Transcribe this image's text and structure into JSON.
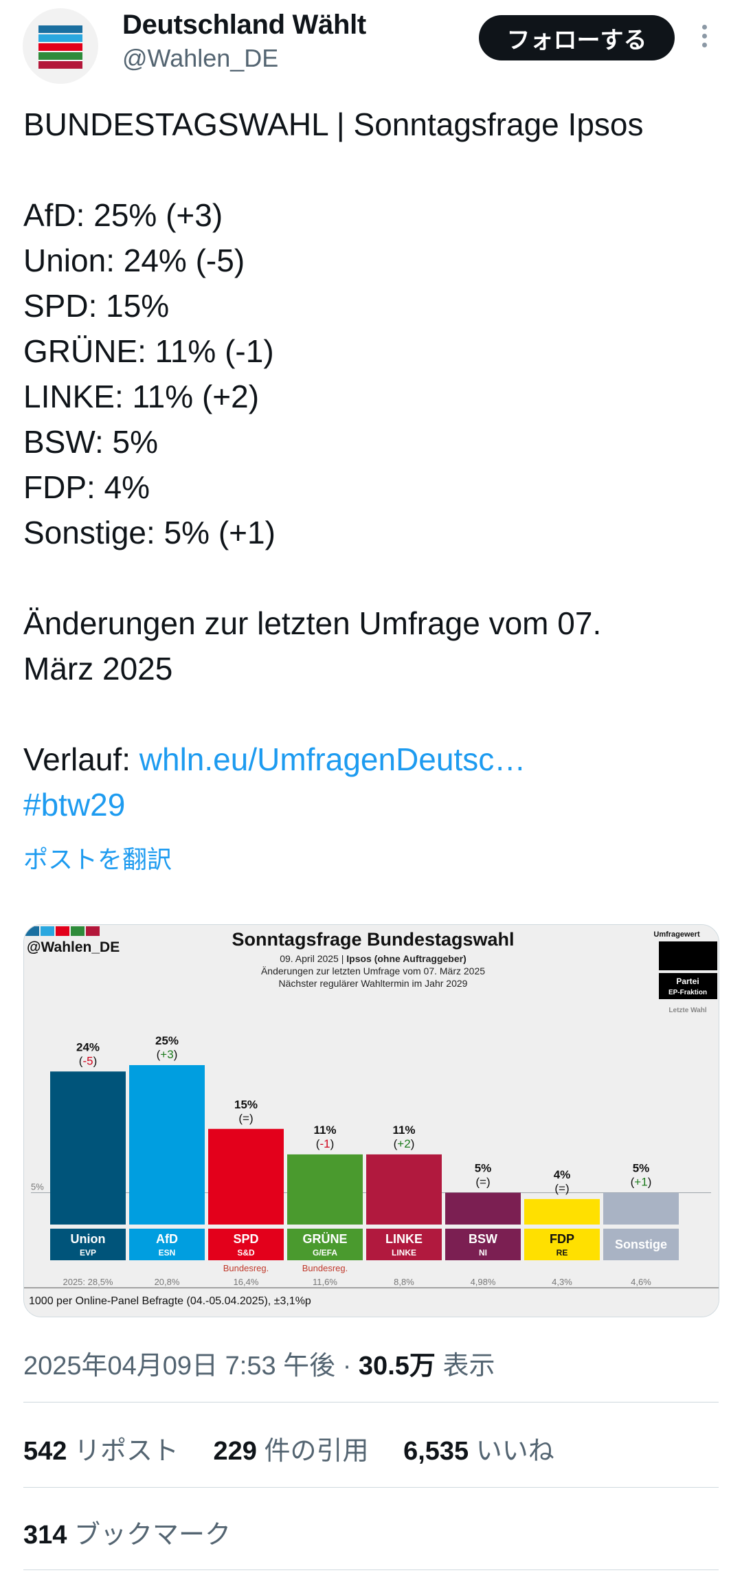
{
  "account": {
    "display_name": "Deutschland Wählt",
    "handle": "@Wahlen_DE",
    "avatar_stripe_colors": [
      "#1a6fa0",
      "#2aa7df",
      "#e2001a",
      "#2e8b3a",
      "#b3173a"
    ]
  },
  "follow_label": "フォローする",
  "tweet": {
    "lines": [
      "BUNDESTAGSWAHL | Sonntagsfrage Ipsos",
      "",
      "AfD: 25% (+3)",
      "Union: 24% (-5)",
      "SPD: 15%",
      "GRÜNE: 11% (-1)",
      "LINKE: 11% (+2)",
      "BSW: 5%",
      "FDP: 4%",
      "Sonstige: 5% (+1)",
      "",
      "Änderungen zur letzten Umfrage vom 07.",
      "März 2025",
      ""
    ],
    "verlauf_label": "Verlauf: ",
    "verlauf_link": "whln.eu/UmfragenDeutsc…",
    "hashtag": "#btw29"
  },
  "translate_label": "ポストを翻訳",
  "chart_data": {
    "type": "bar",
    "brand": "@Wahlen_DE",
    "title": "Sonntagsfrage Bundestagswahl",
    "subtitle_date": "09. April 2025 | ",
    "subtitle_institute": "Ipsos (ohne Auftraggeber)",
    "subtitle_change": "Änderungen zur letzten Umfrage vom 07. März 2025",
    "subtitle_next": "Nächster regulärer Wahltermin im Jahr 2029",
    "legend": {
      "value": "Umfragewert",
      "party": "Partei",
      "group": "EP-Fraktion",
      "last": "Letzte Wahl"
    },
    "threshold_label": "5%",
    "threshold": 5,
    "ylim": [
      0,
      26
    ],
    "footer": "1000 per Online-Panel Befragte (04.-05.04.2025), ±3,1%p",
    "parties": [
      {
        "name": "Union",
        "group": "EVP",
        "value": 24,
        "value_label": "24%",
        "change": "-5",
        "change_color": "#d0021b",
        "color": "#00547a",
        "last": "2025: 28,5%",
        "note": ""
      },
      {
        "name": "AfD",
        "group": "ESN",
        "value": 25,
        "value_label": "25%",
        "change": "+3",
        "change_color": "#1b7a1b",
        "color": "#009ee0",
        "last": "20,8%",
        "note": ""
      },
      {
        "name": "SPD",
        "group": "S&D",
        "value": 15,
        "value_label": "15%",
        "change": "=",
        "change_color": "#222222",
        "color": "#e3001b",
        "last": "16,4%",
        "note": "Bundesreg."
      },
      {
        "name": "GRÜNE",
        "group": "G/EFA",
        "value": 11,
        "value_label": "11%",
        "change": "-1",
        "change_color": "#d0021b",
        "color": "#4a9a2e",
        "last": "11,6%",
        "note": "Bundesreg."
      },
      {
        "name": "LINKE",
        "group": "LINKE",
        "value": 11,
        "value_label": "11%",
        "change": "+2",
        "change_color": "#1b7a1b",
        "color": "#b1193e",
        "last": "8,8%",
        "note": ""
      },
      {
        "name": "BSW",
        "group": "NI",
        "value": 5,
        "value_label": "5%",
        "change": "=",
        "change_color": "#222222",
        "color": "#7b1f52",
        "last": "4,98%",
        "note": ""
      },
      {
        "name": "FDP",
        "group": "RE",
        "value": 4,
        "value_label": "4%",
        "change": "=",
        "change_color": "#222222",
        "color": "#ffe000",
        "last": "4,3%",
        "note": ""
      },
      {
        "name": "Sonstige",
        "group": "",
        "value": 5,
        "value_label": "5%",
        "change": "+1",
        "change_color": "#1b7a1b",
        "color": "#a9b3c4",
        "last": "4,6%",
        "note": ""
      }
    ]
  },
  "meta": {
    "timestamp": "2025年04月09日 7:53 午後 · ",
    "views_count": "30.5万",
    "views_label": " 表示"
  },
  "stats": {
    "reposts_count": "542",
    "reposts_label": " リポスト",
    "quotes_count": "229",
    "quotes_label": " 件の引用",
    "likes_count": "6,535",
    "likes_label": " いいね",
    "bookmarks_count": "314",
    "bookmarks_label": " ブックマーク"
  }
}
